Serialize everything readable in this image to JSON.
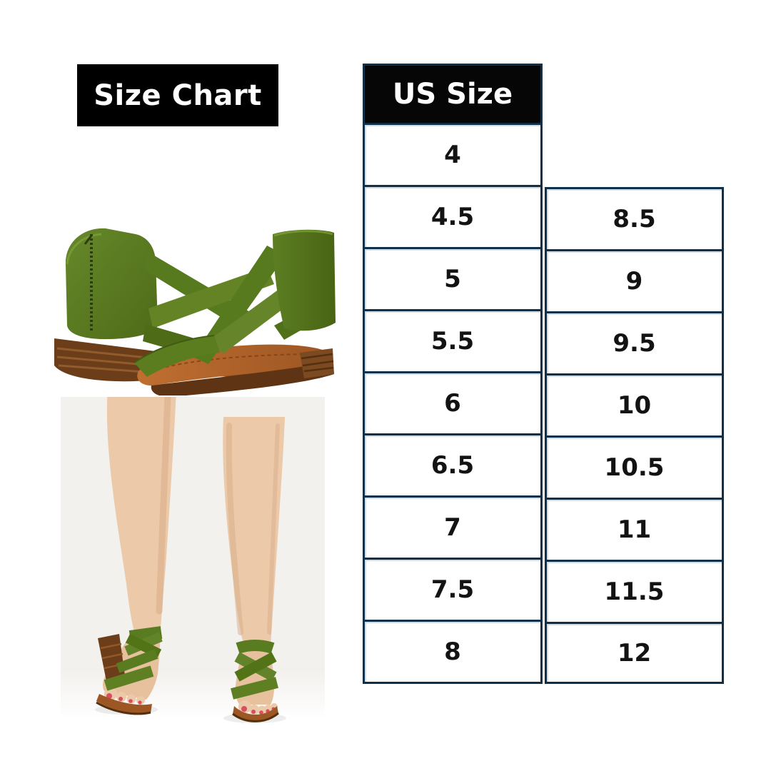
{
  "page": {
    "background": "#ffffff"
  },
  "title_badge": {
    "label": "Size Chart",
    "bg": "#000000",
    "text_color": "#ffffff"
  },
  "size_table": {
    "header": {
      "label": "US Size",
      "bg": "#060606",
      "text_color": "#ffffff"
    },
    "border_color": "#10304a",
    "columns": {
      "left": [
        "4",
        "4.5",
        "5",
        "5.5",
        "6",
        "6.5",
        "7",
        "7.5",
        "8"
      ],
      "right": [
        "8.5",
        "9",
        "9.5",
        "10",
        "10.5",
        "11",
        "11.5",
        "12"
      ]
    }
  },
  "chart_data": {
    "type": "table",
    "title": "Size Chart",
    "columns": [
      "US Size"
    ],
    "us_sizes": [
      "4",
      "4.5",
      "5",
      "5.5",
      "6",
      "6.5",
      "7",
      "7.5",
      "8",
      "8.5",
      "9",
      "9.5",
      "10",
      "10.5",
      "11",
      "11.5",
      "12"
    ]
  },
  "photos": {
    "product": {
      "name": "green-cross-strap-sandals-product-photo",
      "strap_green": "#5d7e22",
      "sole_brown": "#6b3d18",
      "footbed_tan": "#b2662c",
      "background": "#ffffff"
    },
    "model": {
      "name": "legs-wearing-green-sandals-photo",
      "skin_tone": "#ebc9a9",
      "toenail_red": "#d84d5f",
      "background": "#f3f1ee"
    }
  }
}
